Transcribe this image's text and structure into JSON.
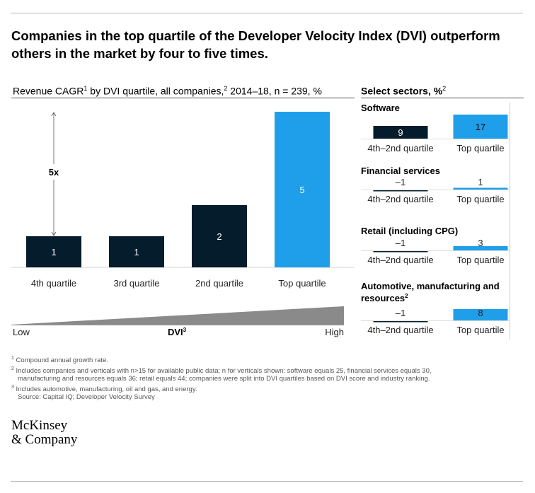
{
  "headline": "Companies in the top quartile of the Developer Velocity Index (DVI) outperform others in the market by four to five times.",
  "left_title": {
    "main": "Revenue CAGR",
    "sup1": "1",
    "mid": " by DVI quartile, all companies,",
    "sup2": "2",
    "rest": " 2014–18, n = 239, %"
  },
  "right_title": {
    "main": "Select sectors, %",
    "sup": "2"
  },
  "colors": {
    "dark": "#051c2c",
    "blue": "#1f9fe9",
    "wedge": "#8a8a8a",
    "axis": "#9a9a9a"
  },
  "chart_data": [
    {
      "type": "bar",
      "title": "Revenue CAGR by DVI quartile, all companies, 2014–18, n = 239, %",
      "categories": [
        "4th quartile",
        "3rd quartile",
        "2nd quartile",
        "Top quartile"
      ],
      "values": [
        1,
        1,
        2,
        5
      ],
      "colors": [
        "#051c2c",
        "#051c2c",
        "#051c2c",
        "#1f9fe9"
      ],
      "xlabel": "DVI",
      "xlabel_sup": "3",
      "x_low_label": "Low",
      "x_high_label": "High",
      "annotation": "5x",
      "ylim": [
        0,
        5
      ]
    },
    {
      "type": "bar",
      "title": "Select sectors, %",
      "sectors": [
        {
          "name": "Software",
          "name_sup": "",
          "categories": [
            "4th–2nd quartile",
            "Top quartile"
          ],
          "values": [
            9,
            17
          ],
          "labels": [
            "9",
            "17"
          ]
        },
        {
          "name": "Financial services",
          "name_sup": "",
          "categories": [
            "4th–2nd quartile",
            "Top quartile"
          ],
          "values": [
            -1,
            1
          ],
          "labels": [
            "–1",
            "1"
          ]
        },
        {
          "name": "Retail (including CPG)",
          "name_sup": "",
          "categories": [
            "4th–2nd quartile",
            "Top quartile"
          ],
          "values": [
            -1,
            3
          ],
          "labels": [
            "–1",
            "3"
          ]
        },
        {
          "name": "Automotive, manufacturing and resources",
          "name_sup": "2",
          "categories": [
            "4th–2nd quartile",
            "Top quartile"
          ],
          "values": [
            -1,
            8
          ],
          "labels": [
            "–1",
            "8"
          ]
        }
      ]
    }
  ],
  "footnotes": {
    "n1": "1",
    "f1": "Compound annual growth rate.",
    "n2": "2",
    "f2a": "Includes companies and verticals with n>15 for available public data; n for verticals shown: software equals 25, financial services equals 30,",
    "f2b": "manufacturing and resources equals 36; retail equals 44; companies were split into DVI quartiles based on DVI score and industry ranking.",
    "n3": "3",
    "f3": "Includes automotive, manufacturing, oil and gas, and energy.",
    "source": "Source: Capital IQ; Developer Velocity Survey"
  },
  "logo": {
    "line1": "McKinsey",
    "line2": "& Company"
  }
}
